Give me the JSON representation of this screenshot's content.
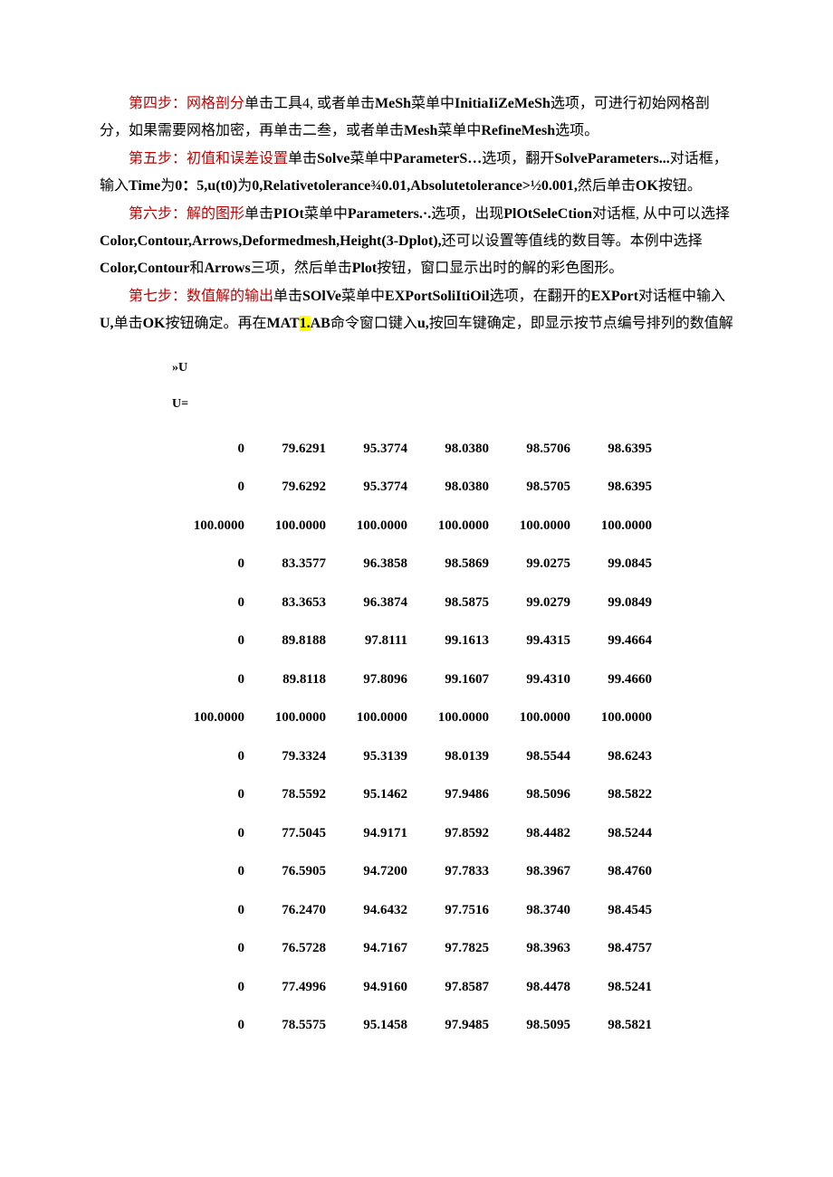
{
  "step4": {
    "label": "第四步：网格剖分",
    "text1": "单击工具4, 或者单击",
    "bold1": "MeSh",
    "text2": "菜单中",
    "bold2": "InitiaIiZeMeSh",
    "text3": "选项，可进行初始网格剖分，如果需要网格加密，再单击二叁，或者单击",
    "bold3": "Mesh",
    "text4": "菜单中",
    "bold4": "RefineMesh",
    "text5": "选项。"
  },
  "step5": {
    "label": "第五步：初值和误差设置",
    "text1": "单击",
    "bold1": "Solve",
    "text2": "菜单中",
    "bold2": "ParameterS…",
    "text3": "选项，翻开",
    "bold3": "SolveParameters...",
    "text4": "对话框，输入",
    "bold4": "Time",
    "text5": "为",
    "bold5": "0：5,u(t0)",
    "text6": "为",
    "bold6": "0,Relativetolerance¾0.01,Absolutetolerance>½0.001,",
    "text7": "然后单击",
    "bold7": "OK",
    "text8": "按钮。"
  },
  "step6": {
    "label": "第六步：解的图形",
    "text1": "单击",
    "bold1": "PIOt",
    "text2": "菜单中",
    "bold2": "Parameters.·.",
    "text3": "选项，出现",
    "bold3": "PlOtSeleCtion",
    "text4": "对话框, 从中可以选择",
    "bold4": "Color,Contour,Arrows,Deformedmesh,Height(3-Dplot),",
    "text5": "还可以设置等值线的数目等。本例中选择",
    "bold5": "Color,Contour",
    "text6": "和",
    "bold6": "Arrows",
    "text7": "三项，然后单击",
    "bold7": "Plot",
    "text8": "按钮，窗口显示出时的解的彩色图形。"
  },
  "step7": {
    "label": "第七步：数值解的输出",
    "text1": "单击",
    "bold1": "SOlVe",
    "text2": "菜单中",
    "bold2": "EXPortSoliItiOil",
    "text3": "选项，在翻开的",
    "bold3": "EXPort",
    "text4": "对话框中输入",
    "bold4": "U,",
    "text5": "单击",
    "bold5": "OK",
    "text6": "按钮确定。再在",
    "bold6a": "MAT",
    "bold6hl": "1.",
    "bold6b": "AB",
    "text7": "命令窗口键入",
    "bold7": "u,",
    "text8": "按回车键确定，即显示按节点编号排列的数值解"
  },
  "code": {
    "prompt": "»U",
    "var": "U=",
    "rows": [
      [
        "0",
        "79.6291",
        "95.3774",
        "98.0380",
        "98.5706",
        "98.6395"
      ],
      [
        "0",
        "79.6292",
        "95.3774",
        "98.0380",
        "98.5705",
        "98.6395"
      ],
      [
        "100.0000",
        "100.0000",
        "100.0000",
        "100.0000",
        "100.0000",
        "100.0000"
      ],
      [
        "0",
        "83.3577",
        "96.3858",
        "98.5869",
        "99.0275",
        "99.0845"
      ],
      [
        "0",
        "83.3653",
        "96.3874",
        "98.5875",
        "99.0279",
        "99.0849"
      ],
      [
        "0",
        "89.8188",
        "97.8111",
        "99.1613",
        "99.4315",
        "99.4664"
      ],
      [
        "0",
        "89.8118",
        "97.8096",
        "99.1607",
        "99.4310",
        "99.4660"
      ],
      [
        "100.0000",
        "100.0000",
        "100.0000",
        "100.0000",
        "100.0000",
        "100.0000"
      ],
      [
        "0",
        "79.3324",
        "95.3139",
        "98.0139",
        "98.5544",
        "98.6243"
      ],
      [
        "0",
        "78.5592",
        "95.1462",
        "97.9486",
        "98.5096",
        "98.5822"
      ],
      [
        "0",
        "77.5045",
        "94.9171",
        "97.8592",
        "98.4482",
        "98.5244"
      ],
      [
        "0",
        "76.5905",
        "94.7200",
        "97.7833",
        "98.3967",
        "98.4760"
      ],
      [
        "0",
        "76.2470",
        "94.6432",
        "97.7516",
        "98.3740",
        "98.4545"
      ],
      [
        "0",
        "76.5728",
        "94.7167",
        "97.7825",
        "98.3963",
        "98.4757"
      ],
      [
        "0",
        "77.4996",
        "94.9160",
        "97.8587",
        "98.4478",
        "98.5241"
      ],
      [
        "0",
        "78.5575",
        "95.1458",
        "97.9485",
        "98.5095",
        "98.5821"
      ]
    ]
  }
}
